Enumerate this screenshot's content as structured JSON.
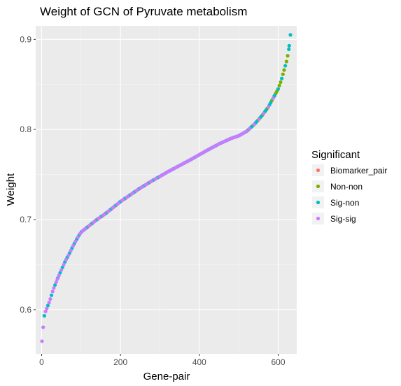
{
  "chart_data": {
    "type": "scatter",
    "title": "Weight of GCN of Pyruvate metabolism",
    "xlabel": "Gene-pair",
    "ylabel": "Weight",
    "xlim": [
      -15,
      647
    ],
    "ylim": [
      0.551,
      0.915
    ],
    "x_ticks": [
      0,
      200,
      400,
      600
    ],
    "y_ticks": [
      0.6,
      0.7,
      0.8,
      0.9
    ],
    "x_tick_labels": [
      "0",
      "200",
      "400",
      "600"
    ],
    "y_tick_labels": [
      "0.6",
      "0.7",
      "0.8",
      "0.9"
    ],
    "grid": true,
    "legend_placement": "right",
    "legend_title": "Significant",
    "series": [
      {
        "name": "Biomarker_pair",
        "color": "#F8766D",
        "points": []
      },
      {
        "name": "Non-non",
        "color": "#7CAE00",
        "points": []
      },
      {
        "name": "Sig-non",
        "color": "#00BFC4",
        "points": []
      },
      {
        "name": "Sig-sig",
        "color": "#C77CFF",
        "points": []
      }
    ],
    "curve_anchors": [
      [
        1,
        0.565
      ],
      [
        3,
        0.571
      ],
      [
        5,
        0.59
      ],
      [
        10,
        0.598
      ],
      [
        20,
        0.609
      ],
      [
        30,
        0.623
      ],
      [
        40,
        0.634
      ],
      [
        50,
        0.644
      ],
      [
        60,
        0.654
      ],
      [
        70,
        0.662
      ],
      [
        80,
        0.671
      ],
      [
        90,
        0.679
      ],
      [
        100,
        0.686
      ],
      [
        120,
        0.693
      ],
      [
        140,
        0.7
      ],
      [
        160,
        0.706
      ],
      [
        180,
        0.713
      ],
      [
        200,
        0.72
      ],
      [
        220,
        0.726
      ],
      [
        250,
        0.735
      ],
      [
        280,
        0.743
      ],
      [
        300,
        0.748
      ],
      [
        320,
        0.753
      ],
      [
        350,
        0.76
      ],
      [
        380,
        0.767
      ],
      [
        400,
        0.772
      ],
      [
        420,
        0.777
      ],
      [
        450,
        0.784
      ],
      [
        480,
        0.79
      ],
      [
        500,
        0.793
      ],
      [
        520,
        0.798
      ],
      [
        540,
        0.806
      ],
      [
        560,
        0.816
      ],
      [
        575,
        0.825
      ],
      [
        590,
        0.837
      ],
      [
        600,
        0.845
      ],
      [
        608,
        0.855
      ],
      [
        615,
        0.866
      ],
      [
        622,
        0.877
      ],
      [
        627,
        0.889
      ],
      [
        629,
        0.897
      ],
      [
        631,
        0.905
      ]
    ],
    "segments": [
      {
        "from": 1,
        "to": 40,
        "mix": [
          "Sig-sig",
          "Sig-sig",
          "Sig-non"
        ]
      },
      {
        "from": 41,
        "to": 110,
        "mix": [
          "Sig-sig",
          "Sig-non"
        ]
      },
      {
        "from": 111,
        "to": 300,
        "mix": [
          "Sig-sig",
          "Sig-sig",
          "Sig-non",
          "Non-non"
        ]
      },
      {
        "from": 301,
        "to": 520,
        "mix": [
          "Sig-non",
          "Sig-sig",
          "Sig-sig"
        ]
      },
      {
        "from": 521,
        "to": 590,
        "mix": [
          "Sig-non",
          "Sig-non",
          "Non-non",
          "Sig-sig"
        ]
      },
      {
        "from": 591,
        "to": 627,
        "mix": [
          "Non-non",
          "Non-non",
          "Sig-non"
        ]
      },
      {
        "from": 628,
        "to": 631,
        "mix": [
          "Sig-non"
        ]
      }
    ]
  }
}
